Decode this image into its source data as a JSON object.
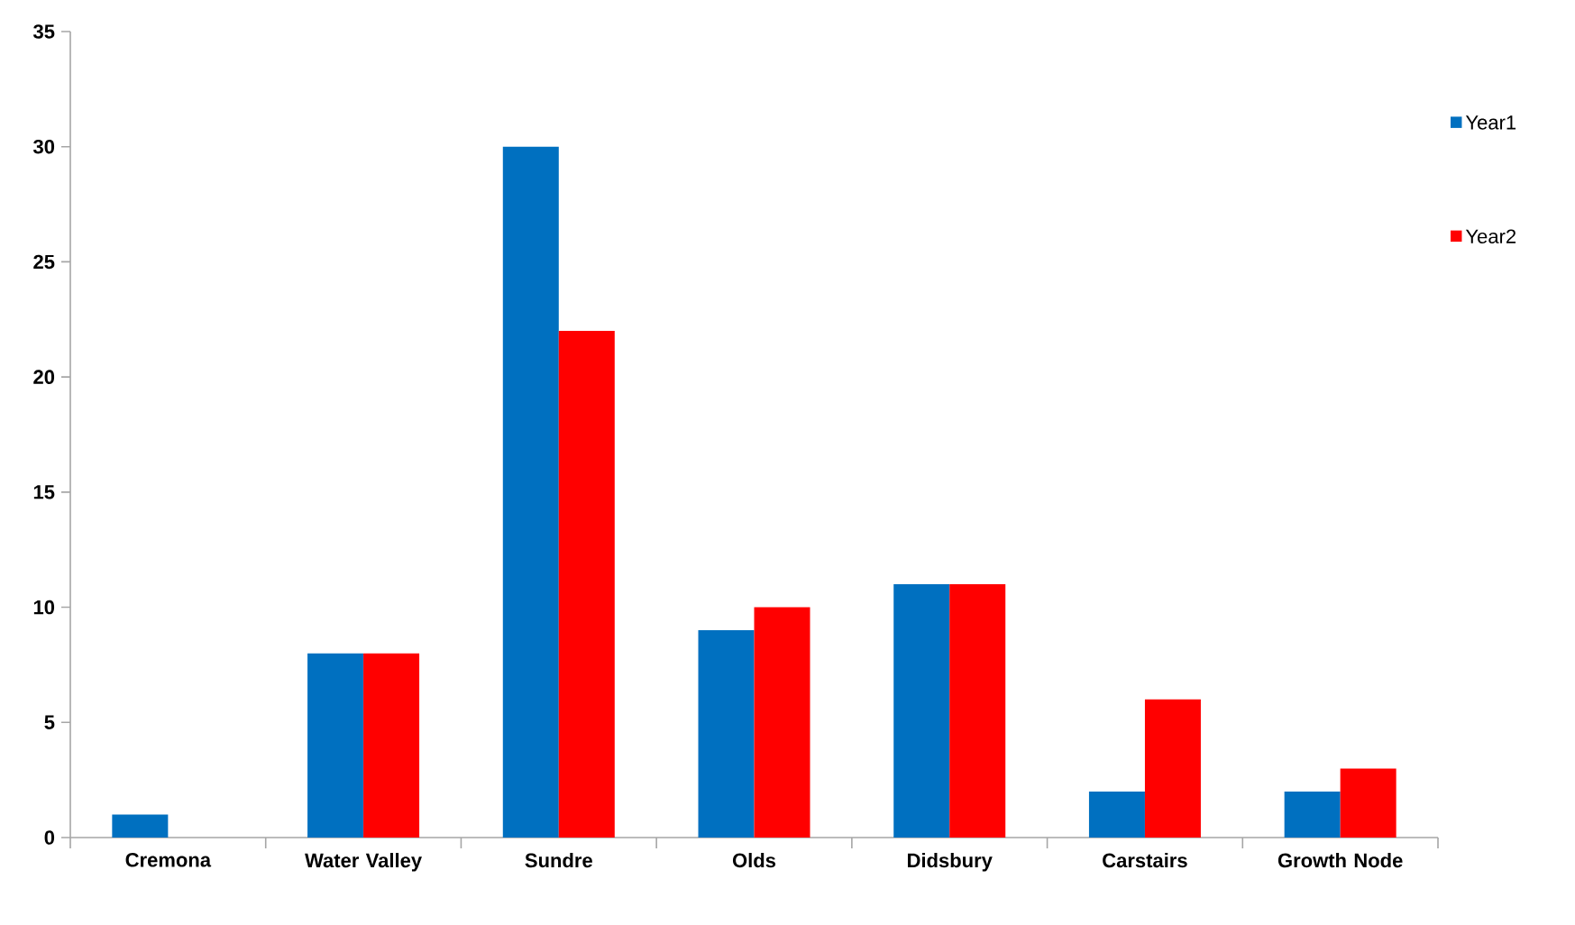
{
  "chart_data": {
    "type": "bar",
    "categories": [
      "Cremona",
      "Water Valley",
      "Sundre",
      "Olds",
      "Didsbury",
      "Carstairs",
      "Growth Node"
    ],
    "series": [
      {
        "name": "Year1",
        "color": "#0070c0",
        "values": [
          1,
          8,
          30,
          9,
          11,
          2,
          2
        ]
      },
      {
        "name": "Year2",
        "color": "#ff0000",
        "values": [
          0,
          8,
          22,
          10,
          11,
          6,
          3
        ]
      }
    ],
    "ylim": [
      0,
      35
    ],
    "yticks": [
      0,
      5,
      10,
      15,
      20,
      25,
      30,
      35
    ],
    "grid": false,
    "legend": "right"
  }
}
